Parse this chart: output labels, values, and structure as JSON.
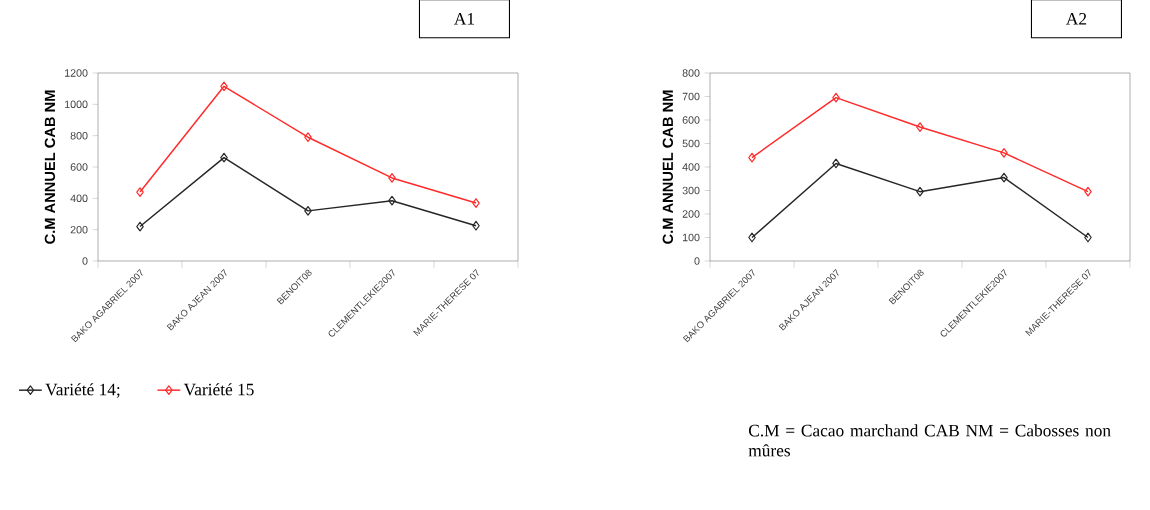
{
  "chart_data": [
    {
      "type": "line",
      "title": "A1",
      "ylabel": "C.M ANNUEL CAB NM",
      "categories": [
        "BAKO AGABRIEL 2007",
        "BAKO AJEAN 2007",
        "BENOIT08",
        "CLEMENTLEKIE2007",
        "MARIE-THERESE 07"
      ],
      "ylim": [
        0,
        1200
      ],
      "yticks": [
        0,
        200,
        400,
        600,
        800,
        1000,
        1200
      ],
      "marker": "diamond",
      "line_style": "solid",
      "legend": "bottom",
      "series": [
        {
          "name": "Variété 14;",
          "color": "#262626",
          "values": [
            220,
            660,
            320,
            385,
            225
          ]
        },
        {
          "name": "Variété 15",
          "color": "#ff2a2a",
          "values": [
            440,
            1115,
            790,
            530,
            370
          ]
        }
      ],
      "annotations": [
        "C.M = Cacao marchand   CAB NM = Cabosses non mûres"
      ]
    },
    {
      "type": "line",
      "title": "A2",
      "ylabel": "C.M ANNUEL CAB NM",
      "categories": [
        "BAKO AGABRIEL 2007",
        "BAKO AJEAN 2007",
        "BENOIT08",
        "CLEMENTLEKIE2007",
        "MARIE-THERESE 07"
      ],
      "ylim": [
        0,
        800
      ],
      "yticks": [
        0,
        100,
        200,
        300,
        400,
        500,
        600,
        700,
        800
      ],
      "marker": "diamond",
      "line_style": "solid",
      "series": [
        {
          "color": "#262626",
          "values": [
            100,
            415,
            295,
            355,
            100
          ]
        },
        {
          "color": "#ff2a2a",
          "values": [
            440,
            695,
            570,
            460,
            295
          ]
        }
      ]
    }
  ]
}
